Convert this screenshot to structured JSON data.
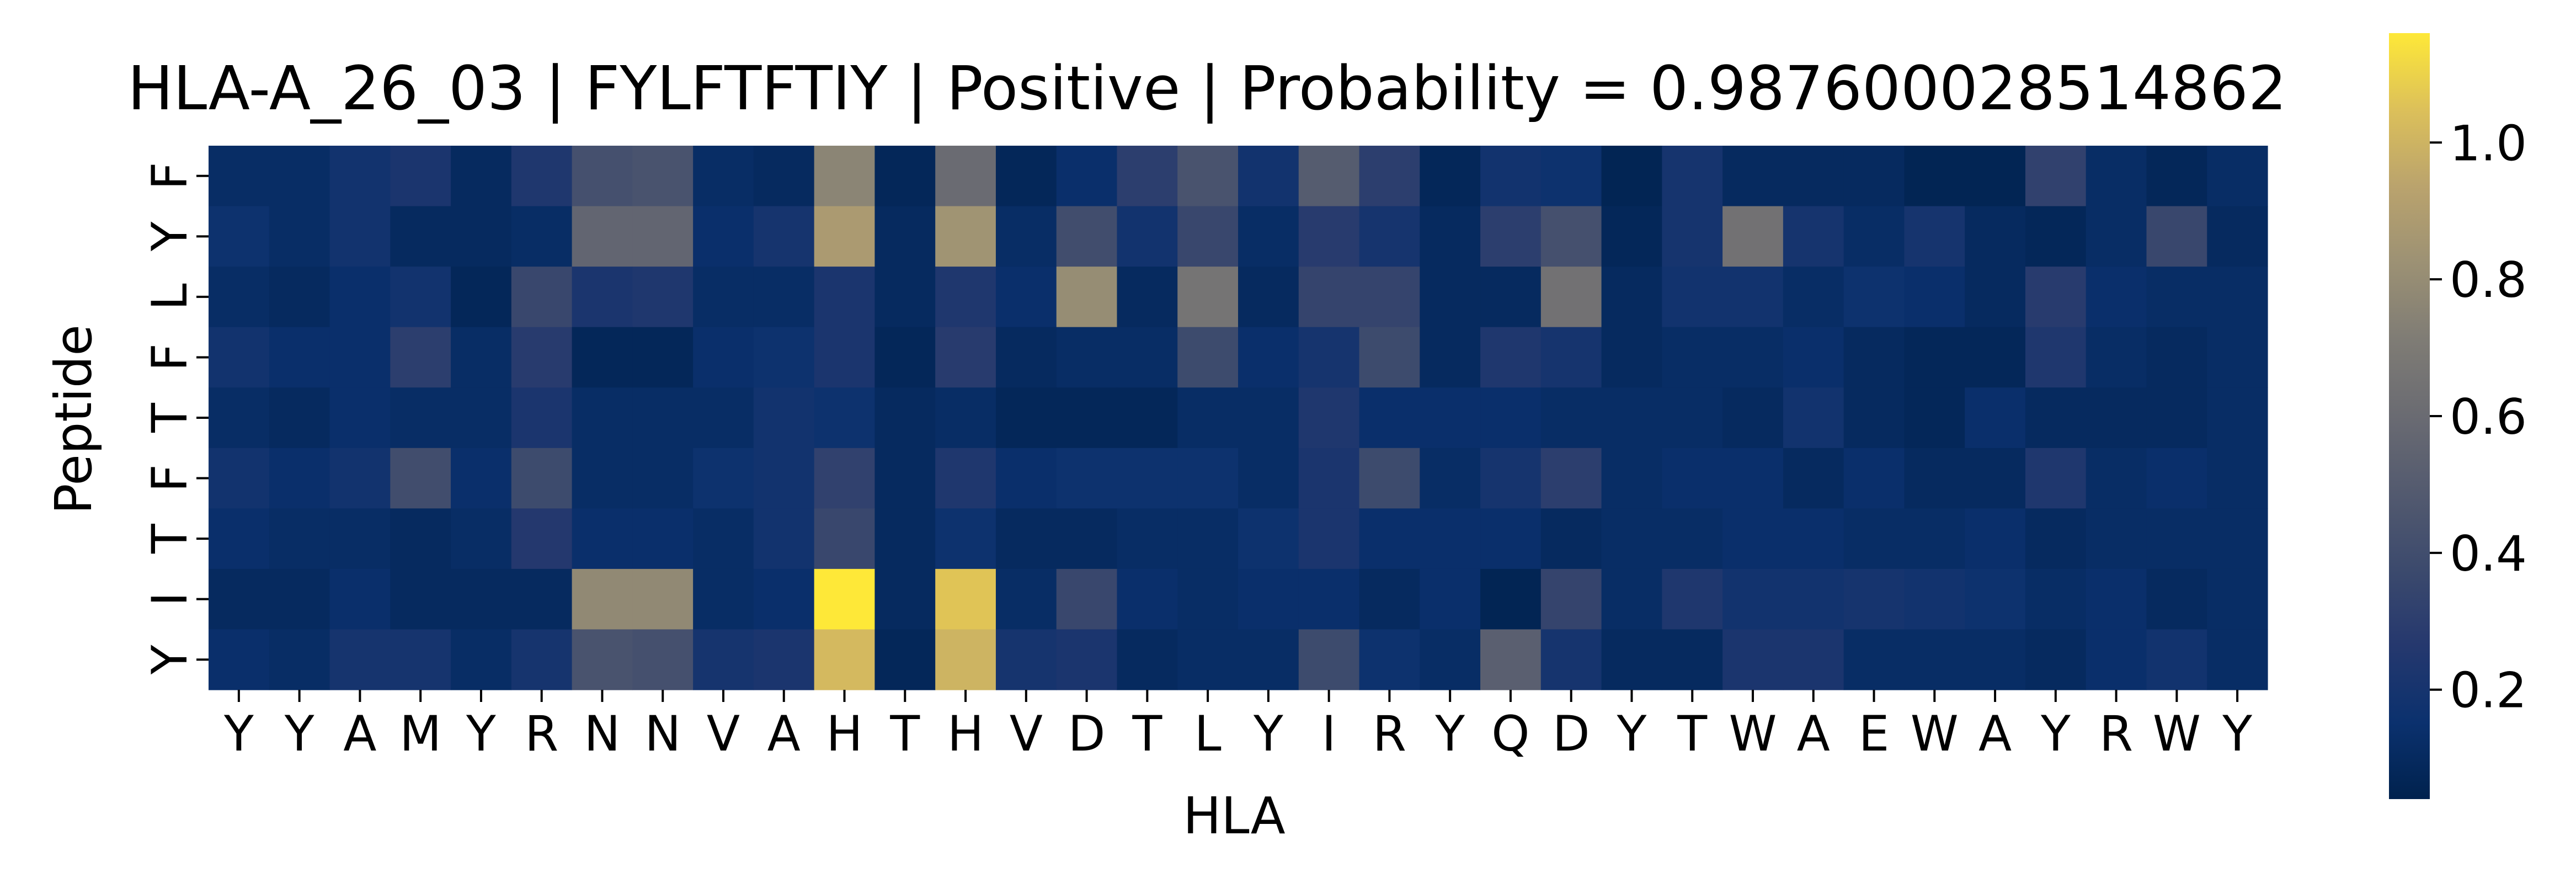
{
  "chart_data": {
    "type": "heatmap",
    "title": "HLA-A_26_03 | FYLFTFTIY | Positive | Probability = 0.987600028514862",
    "xlabel": "HLA",
    "ylabel": "Peptide",
    "x_tick_labels": [
      "Y",
      "Y",
      "A",
      "M",
      "Y",
      "R",
      "N",
      "N",
      "V",
      "A",
      "H",
      "T",
      "H",
      "V",
      "D",
      "T",
      "L",
      "Y",
      "I",
      "R",
      "Y",
      "Q",
      "D",
      "Y",
      "T",
      "W",
      "A",
      "E",
      "W",
      "A",
      "Y",
      "R",
      "W",
      "Y"
    ],
    "y_tick_labels": [
      "F",
      "Y",
      "L",
      "F",
      "T",
      "F",
      "T",
      "I",
      "Y"
    ],
    "colormap": "cividis",
    "colorbar": {
      "range": [
        0.04,
        1.16
      ],
      "ticks": [
        0.2,
        0.4,
        0.6,
        0.8,
        1.0
      ],
      "tick_labels": [
        "0.2",
        "0.4",
        "0.6",
        "0.8",
        "1.0"
      ]
    },
    "values": [
      [
        0.12,
        0.12,
        0.18,
        0.22,
        0.1,
        0.24,
        0.42,
        0.44,
        0.12,
        0.1,
        0.76,
        0.08,
        0.6,
        0.08,
        0.14,
        0.3,
        0.44,
        0.18,
        0.5,
        0.3,
        0.08,
        0.18,
        0.16,
        0.06,
        0.2,
        0.1,
        0.1,
        0.1,
        0.06,
        0.06,
        0.32,
        0.12,
        0.08,
        0.12
      ],
      [
        0.16,
        0.12,
        0.18,
        0.1,
        0.1,
        0.12,
        0.56,
        0.56,
        0.14,
        0.2,
        0.88,
        0.1,
        0.84,
        0.12,
        0.4,
        0.18,
        0.36,
        0.12,
        0.28,
        0.2,
        0.1,
        0.3,
        0.42,
        0.08,
        0.2,
        0.64,
        0.2,
        0.12,
        0.2,
        0.1,
        0.08,
        0.12,
        0.36,
        0.1
      ],
      [
        0.12,
        0.1,
        0.14,
        0.18,
        0.08,
        0.36,
        0.22,
        0.24,
        0.12,
        0.12,
        0.22,
        0.1,
        0.24,
        0.14,
        0.8,
        0.1,
        0.66,
        0.1,
        0.34,
        0.34,
        0.1,
        0.1,
        0.64,
        0.1,
        0.18,
        0.18,
        0.12,
        0.16,
        0.14,
        0.1,
        0.28,
        0.14,
        0.12,
        0.12
      ],
      [
        0.18,
        0.14,
        0.14,
        0.3,
        0.12,
        0.28,
        0.08,
        0.08,
        0.14,
        0.16,
        0.22,
        0.08,
        0.28,
        0.1,
        0.12,
        0.12,
        0.38,
        0.14,
        0.2,
        0.38,
        0.1,
        0.24,
        0.2,
        0.1,
        0.12,
        0.12,
        0.14,
        0.1,
        0.08,
        0.08,
        0.24,
        0.12,
        0.1,
        0.12
      ],
      [
        0.12,
        0.1,
        0.14,
        0.12,
        0.12,
        0.22,
        0.12,
        0.12,
        0.12,
        0.18,
        0.16,
        0.1,
        0.12,
        0.08,
        0.08,
        0.08,
        0.12,
        0.12,
        0.24,
        0.14,
        0.14,
        0.14,
        0.12,
        0.12,
        0.12,
        0.1,
        0.18,
        0.1,
        0.08,
        0.14,
        0.1,
        0.1,
        0.1,
        0.12
      ],
      [
        0.18,
        0.14,
        0.18,
        0.4,
        0.14,
        0.38,
        0.12,
        0.12,
        0.16,
        0.18,
        0.32,
        0.1,
        0.24,
        0.14,
        0.16,
        0.16,
        0.16,
        0.12,
        0.22,
        0.38,
        0.12,
        0.2,
        0.3,
        0.12,
        0.14,
        0.14,
        0.1,
        0.14,
        0.1,
        0.1,
        0.24,
        0.12,
        0.14,
        0.12
      ],
      [
        0.14,
        0.12,
        0.12,
        0.1,
        0.12,
        0.26,
        0.14,
        0.14,
        0.12,
        0.18,
        0.36,
        0.1,
        0.16,
        0.1,
        0.1,
        0.12,
        0.12,
        0.16,
        0.22,
        0.14,
        0.14,
        0.14,
        0.1,
        0.12,
        0.12,
        0.14,
        0.14,
        0.12,
        0.12,
        0.14,
        0.1,
        0.12,
        0.12,
        0.12
      ],
      [
        0.1,
        0.1,
        0.14,
        0.1,
        0.1,
        0.1,
        0.78,
        0.78,
        0.12,
        0.14,
        1.16,
        0.1,
        1.06,
        0.12,
        0.36,
        0.14,
        0.12,
        0.14,
        0.14,
        0.1,
        0.14,
        0.06,
        0.34,
        0.12,
        0.24,
        0.18,
        0.18,
        0.2,
        0.18,
        0.16,
        0.12,
        0.14,
        0.1,
        0.12
      ],
      [
        0.14,
        0.12,
        0.2,
        0.2,
        0.12,
        0.2,
        0.44,
        0.42,
        0.2,
        0.22,
        1.02,
        0.08,
        1.0,
        0.2,
        0.22,
        0.1,
        0.12,
        0.12,
        0.38,
        0.16,
        0.12,
        0.52,
        0.2,
        0.1,
        0.1,
        0.22,
        0.22,
        0.12,
        0.12,
        0.12,
        0.1,
        0.14,
        0.18,
        0.12
      ]
    ]
  }
}
